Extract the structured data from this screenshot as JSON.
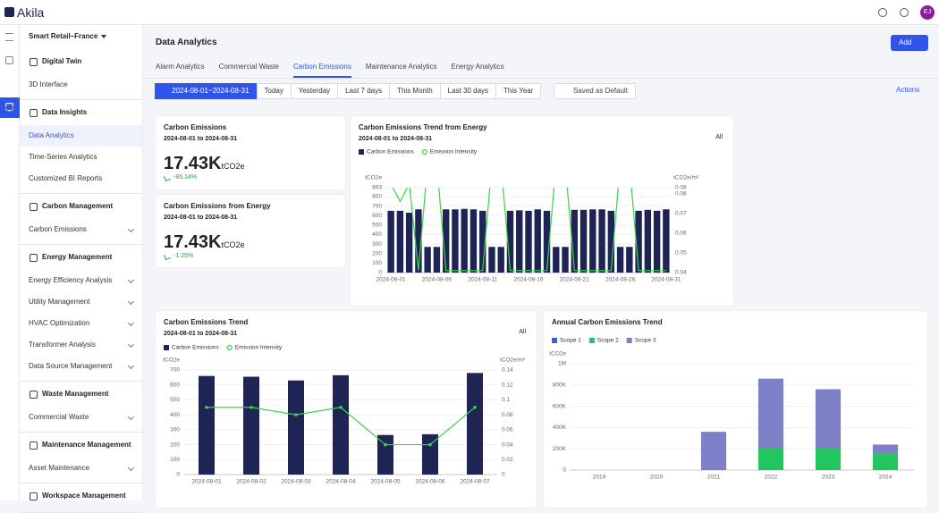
{
  "header": {
    "brand": "Akila",
    "avatar": "EJ"
  },
  "sidebar": {
    "site": "Smart Retail–France",
    "sections": [
      {
        "title": "Digital Twin",
        "items": [
          {
            "label": "3D Interface"
          }
        ]
      },
      {
        "title": "Data Insights",
        "items": [
          {
            "label": "Data Analytics",
            "active": true
          },
          {
            "label": "Time-Series Analytics"
          },
          {
            "label": "Customized BI Reports"
          }
        ]
      },
      {
        "title": "Carbon Management",
        "items": [
          {
            "label": "Carbon Emissions",
            "expandable": true
          }
        ]
      },
      {
        "title": "Energy Management",
        "items": [
          {
            "label": "Energy Efficiency Analysis",
            "expandable": true
          },
          {
            "label": "Utility Management",
            "expandable": true
          },
          {
            "label": "HVAC Optimization",
            "expandable": true
          },
          {
            "label": "Transformer Analysis",
            "expandable": true
          },
          {
            "label": "Data Source Management",
            "expandable": true
          }
        ]
      },
      {
        "title": "Waste Management",
        "items": [
          {
            "label": "Commercial Waste",
            "expandable": true
          }
        ]
      },
      {
        "title": "Maintenance Management",
        "items": [
          {
            "label": "Asset Maintenance",
            "expandable": true
          }
        ]
      },
      {
        "title": "Workspace Management",
        "items": []
      }
    ]
  },
  "page": {
    "title": "Data Analytics",
    "add_button": "Add",
    "tabs": [
      {
        "label": "Alarm Analytics"
      },
      {
        "label": "Commercial Waste"
      },
      {
        "label": "Carbon Emissions",
        "active": true
      },
      {
        "label": "Maintenance Analytics"
      },
      {
        "label": "Energy Analytics"
      }
    ],
    "date_range": "2024-08-01~2024-08-31",
    "quick_ranges": [
      "Today",
      "Yesterday",
      "Last 7 days",
      "This Month",
      "Last 30 days",
      "This Year"
    ],
    "save_default": "Saved as Default",
    "actions": "Actions"
  },
  "kpis": [
    {
      "title": "Carbon Emissions",
      "date_range": "2024-08-01 to 2024-08-31",
      "value": "17.43K",
      "unit": "tCO2e",
      "change": "-85.14%"
    },
    {
      "title": "Carbon Emissions from Energy",
      "date_range": "2024-08-01 to 2024-08-31",
      "value": "17.43K",
      "unit": "tCO2e",
      "change": "-1.25%"
    }
  ],
  "chart_data": [
    {
      "type": "bar",
      "title": "Carbon Emissions Trend from Energy",
      "date_range": "2024-08-01 to 2024-08-31",
      "filter": "All",
      "categories": [
        "2024-08-01",
        null,
        null,
        null,
        null,
        "2024-08-06",
        null,
        null,
        null,
        null,
        "2024-08-11",
        null,
        null,
        null,
        null,
        "2024-08-16",
        null,
        null,
        null,
        null,
        "2024-08-21",
        null,
        null,
        null,
        null,
        "2024-08-26",
        null,
        null,
        null,
        null,
        "2024-08-31"
      ],
      "y_label": "tCO2e",
      "y2_label": "tCO2e/m²",
      "ylim": [
        0,
        893
      ],
      "yticks": [
        0,
        100,
        200,
        300,
        400,
        500,
        600,
        700,
        800,
        893
      ],
      "y2lim": [
        0.04,
        0.083
      ],
      "y2ticks": [
        0.04,
        0.05,
        0.06,
        0.07,
        0.08,
        {
          "value": 0.083,
          "label": "0.08"
        }
      ],
      "grid": true,
      "series": [
        {
          "name": "Carbon Emissions",
          "color": "#1e2453",
          "values": [
            650,
            650,
            630,
            665,
            270,
            270,
            665,
            665,
            670,
            665,
            650,
            270,
            270,
            650,
            655,
            650,
            665,
            650,
            270,
            270,
            660,
            660,
            665,
            665,
            650,
            270,
            270,
            650,
            660,
            650,
            665
          ]
        },
        {
          "name": "Emission Intensity",
          "type": "line",
          "axis": "y2",
          "color": "#3ad34a",
          "values": [
            0.085,
            0.076,
            0.085,
            0.041,
            0.095,
            0.095,
            0.041,
            0.041,
            0.041,
            0.041,
            0.041,
            0.095,
            0.095,
            0.041,
            0.041,
            0.041,
            0.041,
            0.041,
            0.095,
            0.095,
            0.041,
            0.041,
            0.041,
            0.041,
            0.041,
            0.095,
            0.095,
            0.041,
            0.041,
            0.041,
            0.041
          ]
        }
      ]
    },
    {
      "type": "bar",
      "title": "Carbon Emissions Trend",
      "date_range": "2024-08-01 to 2024-08-31",
      "filter": "All",
      "categories": [
        "2024-08-01",
        "2024-08-02",
        "2024-08-03",
        "2024-08-04",
        "2024-08-05",
        "2024-08-06",
        "2024-08-07"
      ],
      "y_label": "tCO2e",
      "y2_label": "tCO2e/m²",
      "ylim": [
        0,
        700
      ],
      "yticks": [
        0,
        100,
        200,
        300,
        400,
        500,
        600,
        700
      ],
      "y2lim": [
        0,
        0.14
      ],
      "y2ticks": [
        0,
        0.02,
        0.04,
        0.06,
        0.08,
        0.1,
        0.12,
        0.14
      ],
      "grid": true,
      "series": [
        {
          "name": "Carbon Emissions",
          "color": "#1e2453",
          "values": [
            660,
            655,
            630,
            665,
            265,
            270,
            680
          ]
        },
        {
          "name": "Emission Intensity",
          "type": "line",
          "axis": "y2",
          "markers": true,
          "color": "#3ad34a",
          "values": [
            0.09,
            0.09,
            0.08,
            0.09,
            0.04,
            0.04,
            0.09
          ]
        }
      ]
    },
    {
      "type": "bar",
      "stacked": true,
      "title": "Annual Carbon Emissions Trend",
      "categories": [
        "2019",
        "2020",
        "2021",
        "2022",
        "2023",
        "2024"
      ],
      "y_label": "tCO2e",
      "ylim": [
        0,
        1000000
      ],
      "yticks": [
        0,
        {
          "value": 200000,
          "label": "200K"
        },
        {
          "value": 400000,
          "label": "400K"
        },
        {
          "value": 600000,
          "label": "600K"
        },
        {
          "value": 800000,
          "label": "800K"
        },
        {
          "value": 1000000,
          "label": "1M"
        }
      ],
      "grid": true,
      "series": [
        {
          "name": "Scope 1",
          "color": "#3d5ce0",
          "values": [
            0,
            0,
            0,
            0,
            0,
            0
          ]
        },
        {
          "name": "Scope 2",
          "color": "#22c55e",
          "values": [
            0,
            0,
            0,
            205000,
            205000,
            155000
          ]
        },
        {
          "name": "Scope 3",
          "color": "#7d80c6",
          "values": [
            0,
            0,
            360000,
            655000,
            555000,
            85000
          ]
        }
      ]
    }
  ]
}
